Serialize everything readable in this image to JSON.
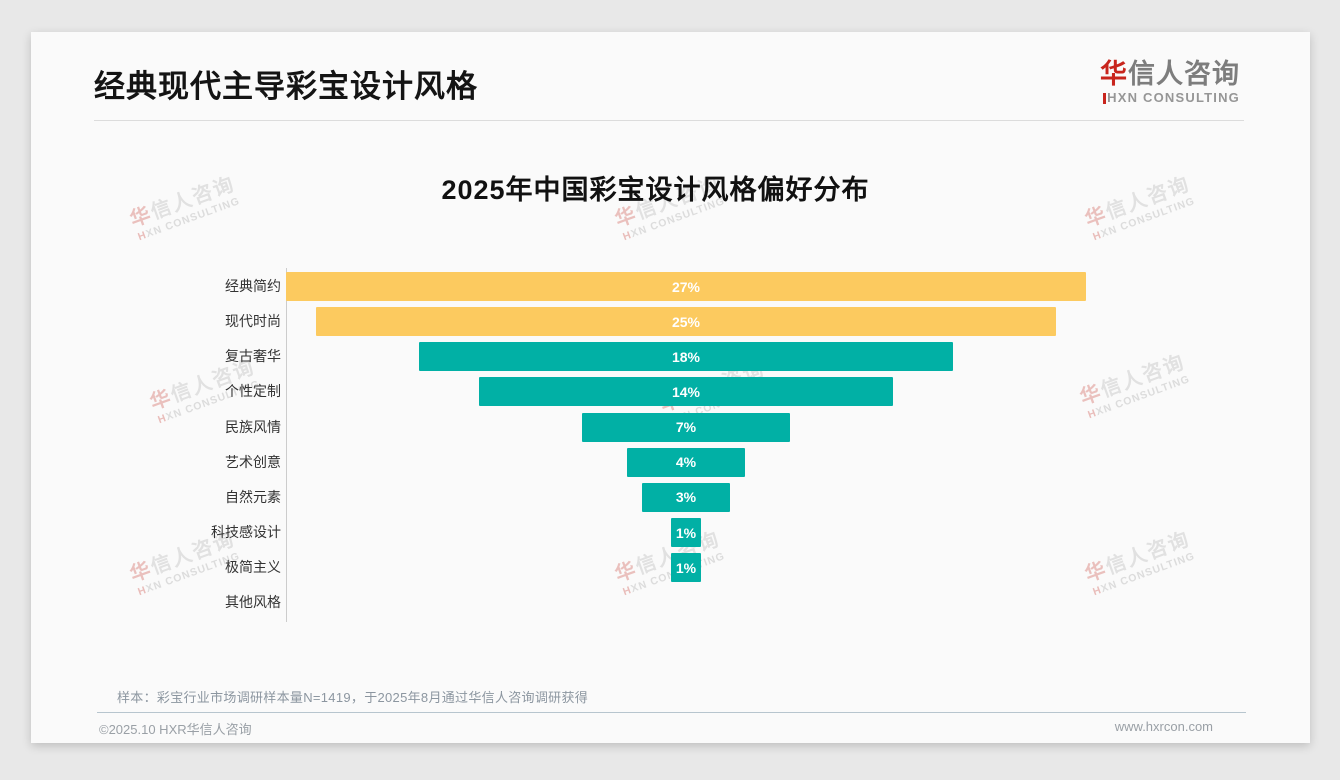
{
  "header": {
    "title": "经典现代主导彩宝设计风格"
  },
  "logo": {
    "line1_accent": "华",
    "line1_rest": "信人咨询",
    "line2": "HXN CONSULTING"
  },
  "watermark": {
    "l1_accent": "华",
    "l1_rest": "信人咨询",
    "l2": "HXN CONSULTING"
  },
  "chart_data": {
    "type": "bar",
    "variant": "horizontal-centered-funnel",
    "title": "2025年中国彩宝设计风格偏好分布",
    "categories": [
      "经典简约",
      "现代时尚",
      "复古奢华",
      "个性定制",
      "民族风情",
      "艺术创意",
      "自然元素",
      "科技感设计",
      "极简主义",
      "其他风格"
    ],
    "values": [
      27,
      25,
      18,
      14,
      7,
      4,
      3,
      1,
      1,
      0
    ],
    "unit": "%",
    "colors": [
      "#FCCA5F",
      "#FCCA5F",
      "#01B0A5",
      "#01B0A5",
      "#01B0A5",
      "#01B0A5",
      "#01B0A5",
      "#01B0A5",
      "#01B0A5",
      "#01B0A5"
    ],
    "value_label_color": "#ffffff",
    "axis_max_full_width": 27,
    "grid": false,
    "legend": false
  },
  "note": {
    "text": "样本：彩宝行业市场调研样本量N=1419，于2025年8月通过华信人咨询调研获得"
  },
  "footer": {
    "left": "©2025.10 HXR华信人咨询",
    "right": "www.hxrcon.com"
  }
}
